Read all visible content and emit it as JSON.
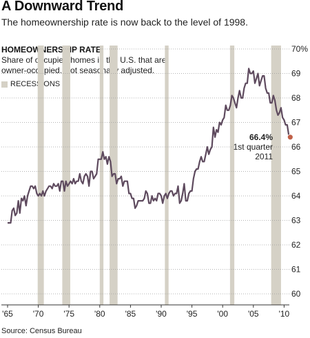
{
  "header": {
    "title": "A Downward Trend",
    "subtitle": "The homeownership rate is now back to the level of 1998."
  },
  "chart_data": {
    "type": "line",
    "title": "HOMEOWNERSHIP RATE",
    "description": "Share of occupied homes in the U.S. that are owner-occupied. Not seasonally adjusted.",
    "legend": [
      {
        "label": "RECESSIONS",
        "color": "#d5d1c6"
      }
    ],
    "legend_position": "top-left",
    "grid": true,
    "xlim": [
      1964.5,
      2011.6
    ],
    "ylim": [
      59.8,
      70.2
    ],
    "x_ticks": [
      1965,
      1970,
      1975,
      1980,
      1985,
      1990,
      1995,
      2000,
      2005,
      2010
    ],
    "x_tick_labels": [
      "'65",
      "'70",
      "'75",
      "'80",
      "'85",
      "'90",
      "'95",
      "'00",
      "'05",
      "'10"
    ],
    "y_ticks": [
      60,
      61,
      62,
      63,
      64,
      65,
      66,
      67,
      68,
      69,
      70
    ],
    "y_tick_labels": [
      "60",
      "61",
      "62",
      "63",
      "64",
      "65",
      "66",
      "67",
      "68",
      "69",
      "70%"
    ],
    "recessions": [
      [
        1969.9,
        1970.9
      ],
      [
        1973.9,
        1975.2
      ],
      [
        1980.0,
        1980.6
      ],
      [
        1981.6,
        1982.9
      ],
      [
        1990.6,
        1991.2
      ],
      [
        2001.2,
        2001.9
      ],
      [
        2007.9,
        2009.5
      ]
    ],
    "series": [
      {
        "color": "#5e4a5e",
        "points": [
          [
            1965.0,
            62.9
          ],
          [
            1965.25,
            62.9
          ],
          [
            1965.5,
            62.9
          ],
          [
            1965.75,
            63.4
          ],
          [
            1966.0,
            63.5
          ],
          [
            1966.25,
            63.2
          ],
          [
            1966.5,
            63.3
          ],
          [
            1966.75,
            63.8
          ],
          [
            1967.0,
            63.3
          ],
          [
            1967.25,
            63.9
          ],
          [
            1967.5,
            63.8
          ],
          [
            1967.75,
            64.0
          ],
          [
            1968.0,
            63.6
          ],
          [
            1968.25,
            64.0
          ],
          [
            1968.5,
            64.2
          ],
          [
            1968.75,
            64.4
          ],
          [
            1969.0,
            64.4
          ],
          [
            1969.25,
            64.3
          ],
          [
            1969.5,
            64.4
          ],
          [
            1969.75,
            64.1
          ],
          [
            1970.0,
            64.0
          ],
          [
            1970.25,
            64.1
          ],
          [
            1970.5,
            64.0
          ],
          [
            1970.75,
            64.2
          ],
          [
            1971.0,
            64.0
          ],
          [
            1971.25,
            64.2
          ],
          [
            1971.5,
            64.3
          ],
          [
            1971.75,
            64.4
          ],
          [
            1972.0,
            64.4
          ],
          [
            1972.25,
            64.3
          ],
          [
            1972.5,
            64.5
          ],
          [
            1972.75,
            64.4
          ],
          [
            1973.0,
            64.4
          ],
          [
            1973.25,
            64.5
          ],
          [
            1973.5,
            64.2
          ],
          [
            1973.75,
            64.6
          ],
          [
            1974.0,
            64.6
          ],
          [
            1974.25,
            64.2
          ],
          [
            1974.5,
            64.6
          ],
          [
            1974.75,
            64.4
          ],
          [
            1975.0,
            64.5
          ],
          [
            1975.25,
            64.6
          ],
          [
            1975.5,
            64.5
          ],
          [
            1975.75,
            64.7
          ],
          [
            1976.0,
            64.5
          ],
          [
            1976.25,
            64.6
          ],
          [
            1976.5,
            64.6
          ],
          [
            1976.75,
            64.9
          ],
          [
            1977.0,
            64.6
          ],
          [
            1977.25,
            64.5
          ],
          [
            1977.5,
            64.8
          ],
          [
            1977.75,
            64.9
          ],
          [
            1978.0,
            64.8
          ],
          [
            1978.25,
            64.4
          ],
          [
            1978.5,
            65.0
          ],
          [
            1978.75,
            65.0
          ],
          [
            1979.0,
            64.7
          ],
          [
            1979.25,
            64.8
          ],
          [
            1979.5,
            64.9
          ],
          [
            1979.75,
            65.5
          ],
          [
            1980.0,
            65.5
          ],
          [
            1980.25,
            65.5
          ],
          [
            1980.5,
            65.8
          ],
          [
            1980.75,
            65.5
          ],
          [
            1981.0,
            65.6
          ],
          [
            1981.25,
            65.3
          ],
          [
            1981.5,
            65.6
          ],
          [
            1981.75,
            65.4
          ],
          [
            1982.0,
            64.8
          ],
          [
            1982.25,
            64.9
          ],
          [
            1982.5,
            64.9
          ],
          [
            1982.75,
            64.5
          ],
          [
            1983.0,
            64.7
          ],
          [
            1983.25,
            64.7
          ],
          [
            1983.5,
            64.8
          ],
          [
            1983.75,
            64.4
          ],
          [
            1984.0,
            64.6
          ],
          [
            1984.25,
            64.6
          ],
          [
            1984.5,
            64.6
          ],
          [
            1984.75,
            64.1
          ],
          [
            1985.0,
            64.1
          ],
          [
            1985.25,
            63.9
          ],
          [
            1985.5,
            63.9
          ],
          [
            1985.75,
            63.5
          ],
          [
            1986.0,
            63.6
          ],
          [
            1986.25,
            63.8
          ],
          [
            1986.5,
            63.8
          ],
          [
            1986.75,
            63.8
          ],
          [
            1987.0,
            63.8
          ],
          [
            1987.25,
            63.9
          ],
          [
            1987.5,
            64.2
          ],
          [
            1987.75,
            64.1
          ],
          [
            1988.0,
            63.7
          ],
          [
            1988.25,
            63.7
          ],
          [
            1988.5,
            64.0
          ],
          [
            1988.75,
            63.8
          ],
          [
            1989.0,
            63.9
          ],
          [
            1989.25,
            63.8
          ],
          [
            1989.5,
            64.1
          ],
          [
            1989.75,
            64.1
          ],
          [
            1990.0,
            64.0
          ],
          [
            1990.25,
            63.7
          ],
          [
            1990.5,
            64.0
          ],
          [
            1990.75,
            64.1
          ],
          [
            1991.0,
            63.9
          ],
          [
            1991.25,
            64.1
          ],
          [
            1991.5,
            64.2
          ],
          [
            1991.75,
            64.2
          ],
          [
            1992.0,
            64.0
          ],
          [
            1992.25,
            64.1
          ],
          [
            1992.5,
            64.1
          ],
          [
            1992.75,
            64.4
          ],
          [
            1993.0,
            63.7
          ],
          [
            1993.25,
            63.8
          ],
          [
            1993.5,
            64.1
          ],
          [
            1993.75,
            64.5
          ],
          [
            1994.0,
            63.8
          ],
          [
            1994.25,
            63.8
          ],
          [
            1994.5,
            64.1
          ],
          [
            1994.75,
            64.2
          ],
          [
            1995.0,
            64.2
          ],
          [
            1995.25,
            64.7
          ],
          [
            1995.5,
            65.0
          ],
          [
            1995.75,
            65.1
          ],
          [
            1996.0,
            65.1
          ],
          [
            1996.25,
            65.4
          ],
          [
            1996.5,
            65.6
          ],
          [
            1996.75,
            65.4
          ],
          [
            1997.0,
            65.4
          ],
          [
            1997.25,
            65.7
          ],
          [
            1997.5,
            66.0
          ],
          [
            1997.75,
            65.7
          ],
          [
            1998.0,
            65.9
          ],
          [
            1998.25,
            66.0
          ],
          [
            1998.5,
            66.8
          ],
          [
            1998.75,
            66.4
          ],
          [
            1999.0,
            66.7
          ],
          [
            1999.25,
            66.6
          ],
          [
            1999.5,
            67.0
          ],
          [
            1999.75,
            66.9
          ],
          [
            2000.0,
            67.1
          ],
          [
            2000.25,
            67.2
          ],
          [
            2000.5,
            67.7
          ],
          [
            2000.75,
            67.5
          ],
          [
            2001.0,
            67.5
          ],
          [
            2001.25,
            67.7
          ],
          [
            2001.5,
            68.1
          ],
          [
            2001.75,
            68.0
          ],
          [
            2002.0,
            67.8
          ],
          [
            2002.25,
            67.6
          ],
          [
            2002.5,
            68.0
          ],
          [
            2002.75,
            68.3
          ],
          [
            2003.0,
            68.0
          ],
          [
            2003.25,
            68.0
          ],
          [
            2003.5,
            68.4
          ],
          [
            2003.75,
            68.6
          ],
          [
            2004.0,
            68.6
          ],
          [
            2004.25,
            69.2
          ],
          [
            2004.5,
            69.0
          ],
          [
            2004.75,
            69.0
          ],
          [
            2005.0,
            69.1
          ],
          [
            2005.25,
            68.6
          ],
          [
            2005.5,
            68.8
          ],
          [
            2005.75,
            69.0
          ],
          [
            2006.0,
            68.5
          ],
          [
            2006.25,
            68.7
          ],
          [
            2006.5,
            68.9
          ],
          [
            2006.75,
            68.9
          ],
          [
            2007.0,
            68.4
          ],
          [
            2007.25,
            68.2
          ],
          [
            2007.5,
            68.2
          ],
          [
            2007.75,
            67.8
          ],
          [
            2008.0,
            67.8
          ],
          [
            2008.25,
            68.1
          ],
          [
            2008.5,
            67.9
          ],
          [
            2008.75,
            67.5
          ],
          [
            2009.0,
            67.3
          ],
          [
            2009.25,
            67.4
          ],
          [
            2009.5,
            67.6
          ],
          [
            2009.75,
            67.2
          ],
          [
            2010.0,
            67.1
          ],
          [
            2010.25,
            66.9
          ],
          [
            2010.5,
            66.9
          ],
          [
            2010.75,
            66.5
          ],
          [
            2011.0,
            66.4
          ]
        ]
      }
    ],
    "annotation": {
      "x": 2011.0,
      "y": 66.4,
      "value_label": "66.4%",
      "period_label": "1st quarter",
      "year_label": "2011",
      "marker_color": "#c06048"
    }
  },
  "footer": {
    "source": "Source: Census Bureau"
  }
}
